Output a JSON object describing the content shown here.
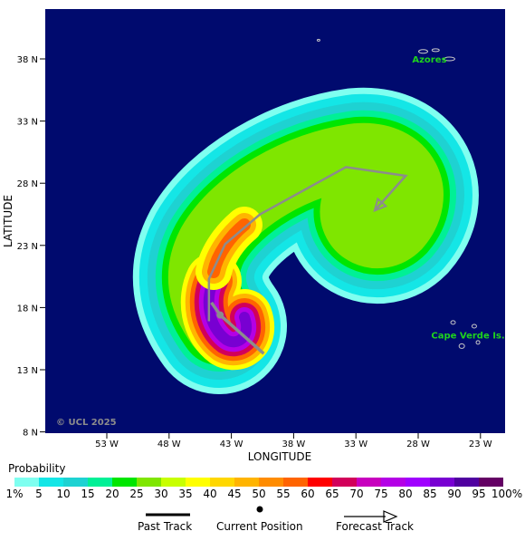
{
  "map": {
    "ylabel": "LATITUDE",
    "xlabel": "LONGITUDE",
    "lat_ticks": [
      "38 N",
      "33 N",
      "28 N",
      "23 N",
      "18 N",
      "13 N",
      "8 N"
    ],
    "lon_ticks": [
      "53 W",
      "48 W",
      "43 W",
      "38 W",
      "33 W",
      "28 W",
      "23 W"
    ],
    "places": [
      {
        "name": "Azores",
        "lon": -27.1,
        "lat": 38.0
      },
      {
        "name": "Cape Verde Is.",
        "lon": -24.0,
        "lat": 15.8
      }
    ],
    "copyright": "© UCL 2025",
    "colors": {
      "ocean": "#000a6e",
      "land_outline": "#c8c8c8",
      "track": "#8c8c8c"
    },
    "track": {
      "past": [
        [
          -44.6,
          18.4
        ],
        [
          -43.9,
          17.4
        ]
      ],
      "current": [
        -43.9,
        17.4
      ],
      "forecast": [
        [
          -43.9,
          17.4
        ],
        [
          -40.4,
          14.3
        ]
      ],
      "mean_path": [
        [
          -44.8,
          16.9
        ],
        [
          -44.8,
          20.3
        ],
        [
          -43.5,
          23.1
        ],
        [
          -40.7,
          25.5
        ],
        [
          -33.8,
          29.3
        ],
        [
          -29.0,
          28.6
        ],
        [
          -31.5,
          25.8
        ]
      ]
    }
  },
  "legend": {
    "title": "Probability",
    "labels": [
      "1%",
      "5",
      "10",
      "15",
      "20",
      "25",
      "30",
      "35",
      "40",
      "45",
      "50",
      "55",
      "60",
      "65",
      "70",
      "75",
      "80",
      "85",
      "90",
      "95",
      "100%"
    ],
    "colors": [
      "#7ffff0",
      "#14e6e6",
      "#1ed2d2",
      "#00f096",
      "#00e600",
      "#7fe600",
      "#c8ff00",
      "#ffff00",
      "#ffd700",
      "#ffb400",
      "#ff8c00",
      "#ff6400",
      "#ff0000",
      "#d2005a",
      "#c800be",
      "#b400e6",
      "#a000ff",
      "#7800d2",
      "#5000a0",
      "#640064"
    ]
  },
  "key": {
    "past": "Past Track",
    "current": "Current Position",
    "forecast": "Forecast Track"
  }
}
